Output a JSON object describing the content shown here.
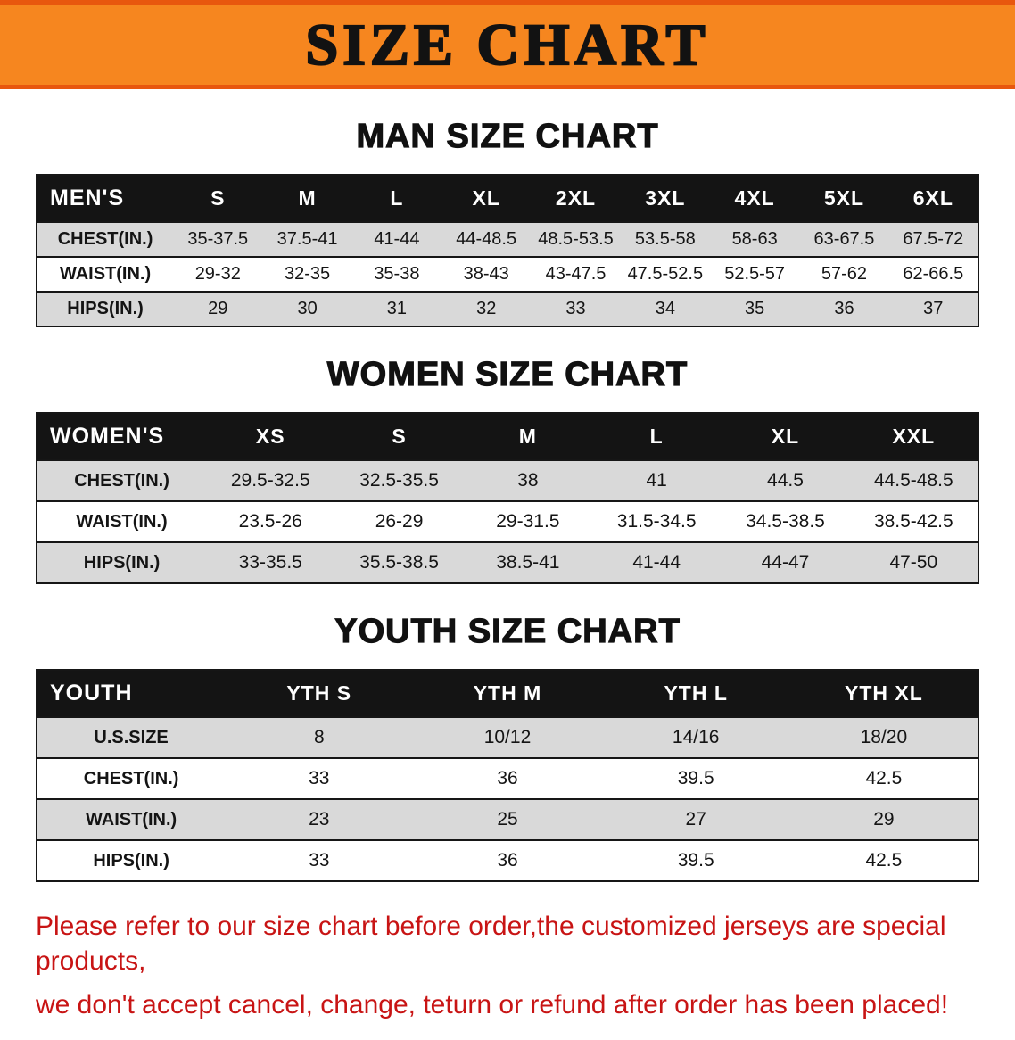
{
  "banner": {
    "title": "SIZE CHART"
  },
  "sections": [
    {
      "heading": "MAN SIZE CHART",
      "table": {
        "header": [
          "MEN'S",
          "S",
          "M",
          "L",
          "XL",
          "2XL",
          "3XL",
          "4XL",
          "5XL",
          "6XL"
        ],
        "rows": [
          [
            "CHEST(IN.)",
            "35-37.5",
            "37.5-41",
            "41-44",
            "44-48.5",
            "48.5-53.5",
            "53.5-58",
            "58-63",
            "63-67.5",
            "67.5-72"
          ],
          [
            "WAIST(IN.)",
            "29-32",
            "32-35",
            "35-38",
            "38-43",
            "43-47.5",
            "47.5-52.5",
            "52.5-57",
            "57-62",
            "62-66.5"
          ],
          [
            "HIPS(IN.)",
            "29",
            "30",
            "31",
            "32",
            "33",
            "34",
            "35",
            "36",
            "37"
          ]
        ]
      }
    },
    {
      "heading": "WOMEN SIZE CHART",
      "table": {
        "header": [
          "WOMEN'S",
          "XS",
          "S",
          "M",
          "L",
          "XL",
          "XXL"
        ],
        "rows": [
          [
            "CHEST(IN.)",
            "29.5-32.5",
            "32.5-35.5",
            "38",
            "41",
            "44.5",
            "44.5-48.5"
          ],
          [
            "WAIST(IN.)",
            "23.5-26",
            "26-29",
            "29-31.5",
            "31.5-34.5",
            "34.5-38.5",
            "38.5-42.5"
          ],
          [
            "HIPS(IN.)",
            "33-35.5",
            "35.5-38.5",
            "38.5-41",
            "41-44",
            "44-47",
            "47-50"
          ]
        ]
      }
    },
    {
      "heading": "YOUTH SIZE CHART",
      "table": {
        "header": [
          "YOUTH",
          "YTH S",
          "YTH M",
          "YTH L",
          "YTH XL"
        ],
        "rows": [
          [
            "U.S.SIZE",
            "8",
            "10/12",
            "14/16",
            "18/20"
          ],
          [
            "CHEST(IN.)",
            "33",
            "36",
            "39.5",
            "42.5"
          ],
          [
            "WAIST(IN.)",
            "23",
            "25",
            "27",
            "29"
          ],
          [
            "HIPS(IN.)",
            "33",
            "36",
            "39.5",
            "42.5"
          ]
        ]
      }
    }
  ],
  "footer": {
    "lines": [
      "Please refer to our size chart before order,the customized jerseys are special products,",
      "we don't accept cancel, change, teturn or refund after order has been placed!"
    ]
  },
  "colors": {
    "banner_orange": "#f6861f",
    "banner_edge": "#e8570e",
    "header_black": "#141414",
    "row_gray": "#d9d9d9",
    "notice_red": "#c81414"
  }
}
